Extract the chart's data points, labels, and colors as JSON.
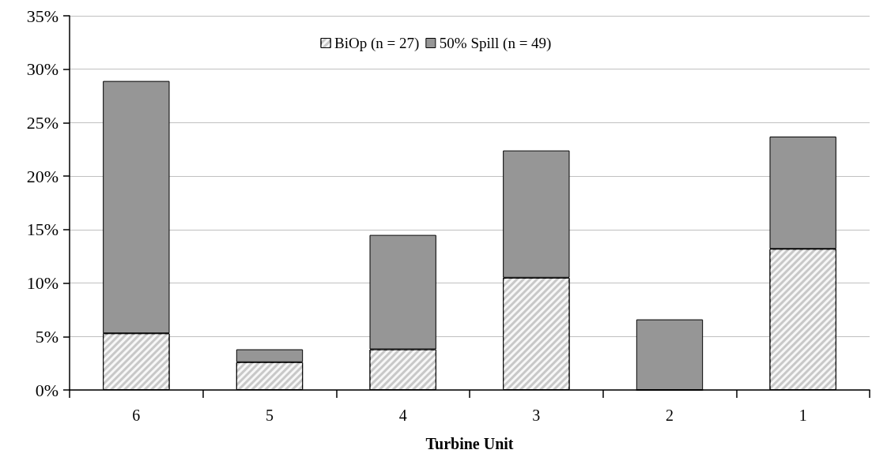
{
  "chart_data": {
    "type": "bar",
    "xlabel": "Turbine Unit",
    "categories": [
      "6",
      "5",
      "4",
      "3",
      "2",
      "1"
    ],
    "stacked": true,
    "series": [
      {
        "name": "BiOp (n = 27)",
        "color": "#c8c8c8",
        "values": [
          5.3,
          2.6,
          3.8,
          10.5,
          0,
          13.2
        ]
      },
      {
        "name": "50% Spill (n = 49)",
        "color": "#969696",
        "values": [
          23.6,
          1.2,
          10.7,
          11.9,
          6.6,
          10.5
        ]
      }
    ],
    "ylim": [
      0,
      35
    ],
    "yticks": [
      {
        "value": 0,
        "label": "0%"
      },
      {
        "value": 5,
        "label": "5%"
      },
      {
        "value": 10,
        "label": "10%"
      },
      {
        "value": 15,
        "label": "15%"
      },
      {
        "value": 20,
        "label": "20%"
      },
      {
        "value": 25,
        "label": "25%"
      },
      {
        "value": 30,
        "label": "30%"
      },
      {
        "value": 35,
        "label": "35%"
      }
    ],
    "grid": "y",
    "legend": "top"
  }
}
